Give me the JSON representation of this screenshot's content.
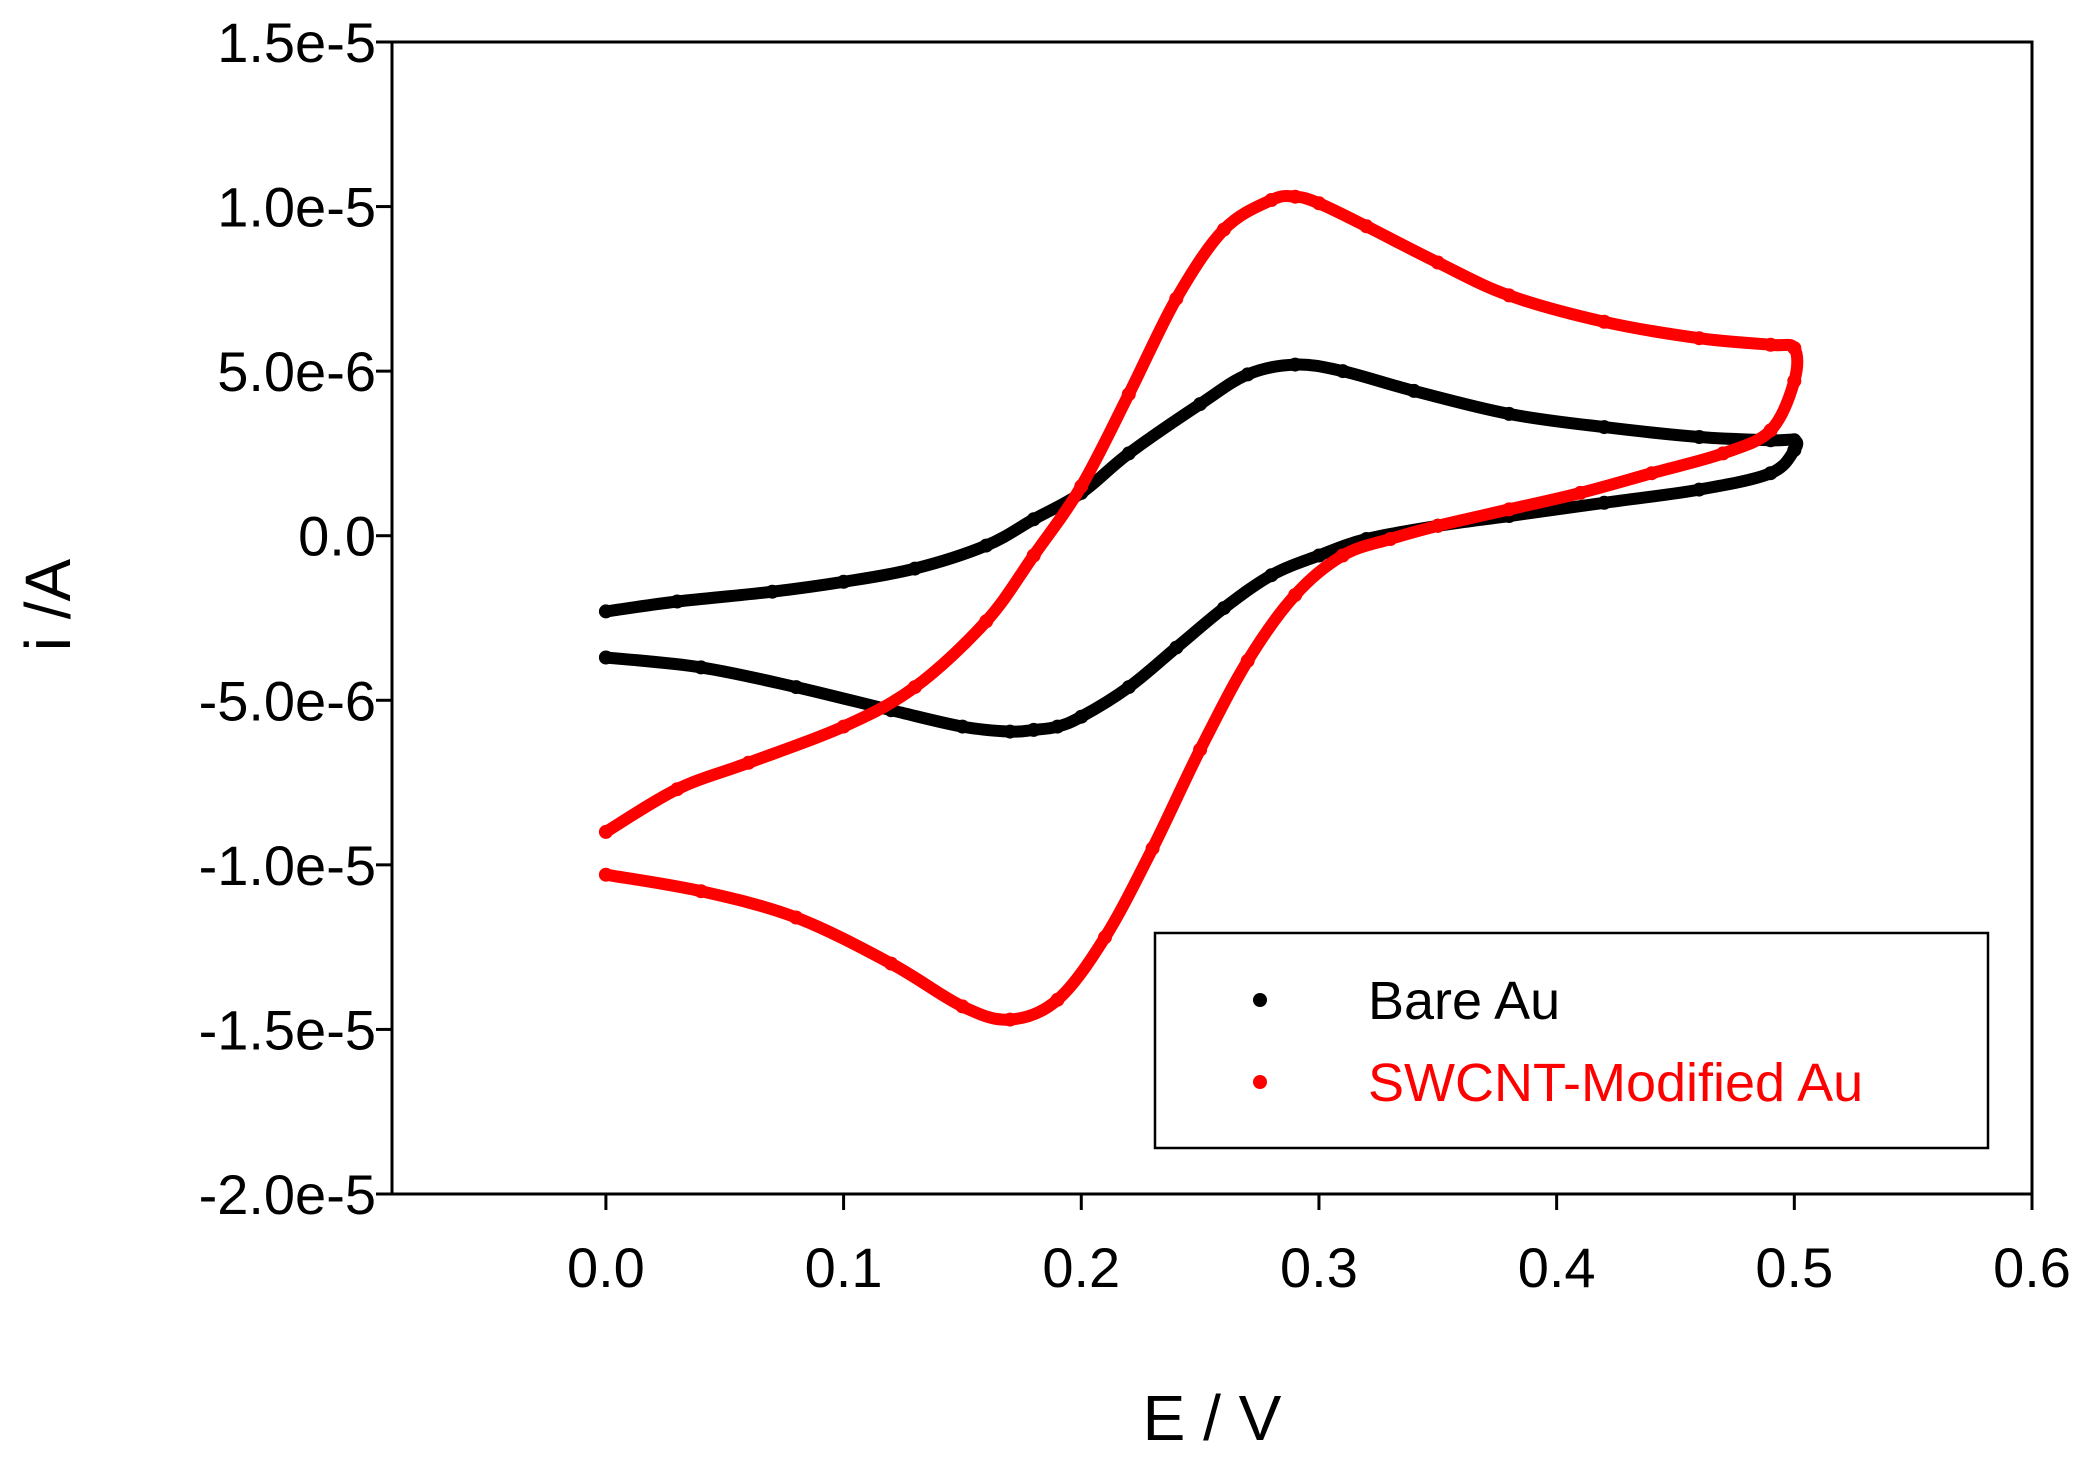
{
  "chart_data": {
    "type": "line",
    "title": "",
    "xlabel": "E / V",
    "ylabel": "i /A",
    "xlim": [
      -0.09,
      0.6
    ],
    "ylim": [
      -2e-05,
      1.5e-05
    ],
    "xticks": [
      0.0,
      0.1,
      0.2,
      0.3,
      0.4,
      0.5,
      0.6
    ],
    "xtick_labels": [
      "0.0",
      "0.1",
      "0.2",
      "0.3",
      "0.4",
      "0.5",
      "0.6"
    ],
    "yticks": [
      1.5e-05,
      1e-05,
      5e-06,
      0.0,
      -5e-06,
      -1e-05,
      -1.5e-05,
      -2e-05
    ],
    "ytick_labels": [
      "1.5e-5",
      "1.0e-5",
      "5.0e-6",
      "0.0",
      "-5.0e-6",
      "-1.0e-5",
      "-1.5e-5",
      "-2.0e-5"
    ],
    "grid": false,
    "legend_position": "bottom-right",
    "series": [
      {
        "name": "Bare Au",
        "color": "#000000",
        "x": [
          0.0,
          0.03,
          0.07,
          0.1,
          0.13,
          0.16,
          0.18,
          0.2,
          0.22,
          0.25,
          0.27,
          0.29,
          0.31,
          0.34,
          0.38,
          0.42,
          0.46,
          0.49,
          0.5,
          0.5,
          0.49,
          0.46,
          0.42,
          0.38,
          0.35,
          0.32,
          0.3,
          0.28,
          0.26,
          0.24,
          0.22,
          0.2,
          0.19,
          0.18,
          0.17,
          0.15,
          0.12,
          0.08,
          0.04,
          0.0
        ],
        "y": [
          -2.3e-06,
          -2e-06,
          -1.7e-06,
          -1.4e-06,
          -1e-06,
          -3e-07,
          5e-07,
          1.3e-06,
          2.5e-06,
          4e-06,
          4.9e-06,
          5.2e-06,
          5e-06,
          4.4e-06,
          3.7e-06,
          3.3e-06,
          3e-06,
          2.9e-06,
          2.9e-06,
          2.6e-06,
          1.9e-06,
          1.4e-06,
          1e-06,
          6e-07,
          3e-07,
          -1e-07,
          -6e-07,
          -1.2e-06,
          -2.2e-06,
          -3.4e-06,
          -4.6e-06,
          -5.5e-06,
          -5.8e-06,
          -5.9e-06,
          -5.95e-06,
          -5.8e-06,
          -5.3e-06,
          -4.6e-06,
          -4e-06,
          -3.7e-06
        ]
      },
      {
        "name": "SWCNT-Modified Au",
        "color": "#ff0000",
        "x": [
          0.0,
          0.03,
          0.06,
          0.1,
          0.13,
          0.16,
          0.18,
          0.2,
          0.22,
          0.24,
          0.26,
          0.28,
          0.29,
          0.3,
          0.32,
          0.35,
          0.38,
          0.42,
          0.46,
          0.49,
          0.5,
          0.5,
          0.49,
          0.47,
          0.44,
          0.41,
          0.38,
          0.35,
          0.33,
          0.31,
          0.29,
          0.27,
          0.25,
          0.23,
          0.21,
          0.19,
          0.17,
          0.15,
          0.12,
          0.08,
          0.04,
          0.0
        ],
        "y": [
          -9e-06,
          -7.7e-06,
          -6.9e-06,
          -5.8e-06,
          -4.6e-06,
          -2.6e-06,
          -6e-07,
          1.5e-06,
          4.3e-06,
          7.2e-06,
          9.3e-06,
          1.02e-05,
          1.03e-05,
          1.01e-05,
          9.4e-06,
          8.3e-06,
          7.3e-06,
          6.5e-06,
          6e-06,
          5.8e-06,
          5.7e-06,
          4.7e-06,
          3.2e-06,
          2.5e-06,
          1.9e-06,
          1.3e-06,
          8e-07,
          3e-07,
          -1e-07,
          -6e-07,
          -1.8e-06,
          -3.8e-06,
          -6.5e-06,
          -9.5e-06,
          -1.22e-05,
          -1.41e-05,
          -1.47e-05,
          -1.43e-05,
          -1.3e-05,
          -1.16e-05,
          -1.08e-05,
          -1.03e-05
        ]
      }
    ]
  }
}
